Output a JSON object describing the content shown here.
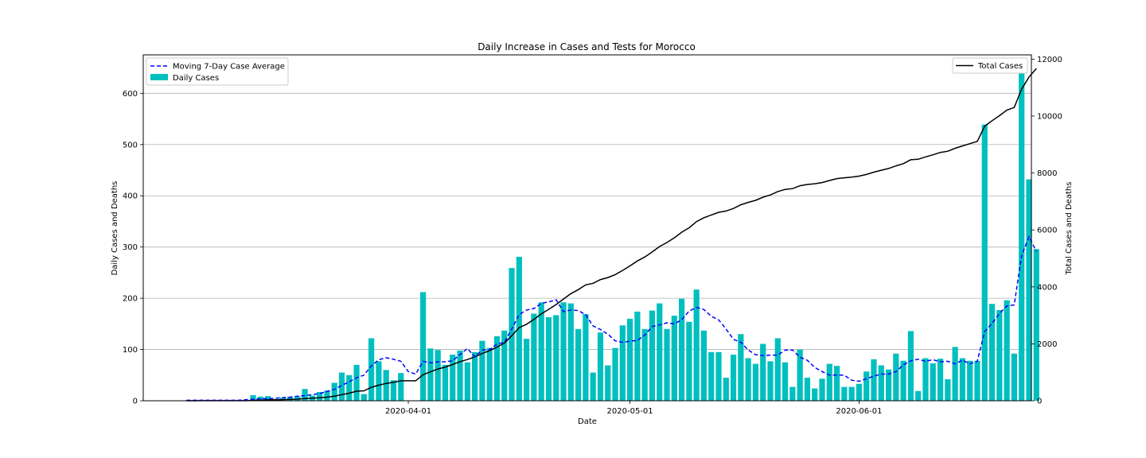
{
  "chart_data": {
    "type": "bar",
    "title": "Daily Increase in Cases and Tests for Morocco",
    "xlabel": "Date",
    "ylabel_left": "Daily Cases and Deaths",
    "ylabel_right": "Total Cases and Deaths",
    "start_date": "2020-03-02",
    "x_ticks": [
      {
        "label": "2020-04-01",
        "index": 30
      },
      {
        "label": "2020-05-01",
        "index": 60
      },
      {
        "label": "2020-06-01",
        "index": 91
      }
    ],
    "ylim_left": [
      0,
      675
    ],
    "yticks_left": [
      0,
      100,
      200,
      300,
      400,
      500,
      600
    ],
    "ylim_right": [
      0,
      12150
    ],
    "yticks_right": [
      0,
      2000,
      4000,
      6000,
      8000,
      10000,
      12000
    ],
    "grid": "horizontal",
    "colors": {
      "bars": "#00bfbf",
      "average": "#0000ff",
      "total": "#000000",
      "grid": "#b0b0b0"
    },
    "legend_left": [
      {
        "label": "Moving 7-Day Case Average",
        "style": "dashed-line"
      },
      {
        "label": "Daily Cases",
        "style": "bar"
      }
    ],
    "legend_right": [
      {
        "label": "Total Cases",
        "style": "solid-line"
      }
    ],
    "series": [
      {
        "name": "Daily Cases",
        "kind": "bar",
        "axis": "left",
        "values": [
          1,
          0,
          1,
          0,
          0,
          0,
          0,
          0,
          0,
          11,
          8,
          9,
          3,
          6,
          8,
          9,
          23,
          10,
          17,
          20,
          35,
          55,
          50,
          70,
          13,
          122,
          77,
          60,
          40,
          54,
          0,
          0,
          212,
          102,
          99,
          70,
          90,
          98,
          75,
          95,
          117,
          103,
          126,
          137,
          259,
          281,
          121,
          170,
          192,
          163,
          167,
          192,
          190,
          140,
          169,
          55,
          133,
          69,
          103,
          147,
          160,
          174,
          140,
          176,
          190,
          140,
          166,
          199,
          154,
          217,
          137,
          95,
          95,
          45,
          90,
          130,
          83,
          72,
          111,
          77,
          122,
          75,
          27,
          100,
          45,
          24,
          43,
          72,
          68,
          27,
          27,
          33,
          57,
          81,
          69,
          61,
          92,
          78,
          136,
          19,
          83,
          73,
          82,
          42,
          105,
          83,
          78,
          78,
          539,
          189,
          177,
          196,
          92,
          641,
          432,
          296
        ]
      },
      {
        "name": "Moving 7-Day Case Average",
        "kind": "line",
        "axis": "left",
        "values": [
          1,
          1,
          1,
          1,
          1,
          1,
          1,
          1,
          2,
          3,
          4,
          4,
          5,
          6,
          7,
          9,
          10,
          12,
          14,
          18,
          22,
          30,
          37,
          45,
          50,
          68,
          80,
          84,
          81,
          77,
          57,
          52,
          77,
          74,
          76,
          76,
          78,
          90,
          102,
          86,
          99,
          100,
          111,
          114,
          140,
          168,
          177,
          180,
          190,
          193,
          197,
          174,
          177,
          176,
          168,
          146,
          139,
          130,
          117,
          114,
          116,
          118,
          128,
          145,
          148,
          152,
          150,
          158,
          175,
          182,
          178,
          165,
          158,
          140,
          120,
          114,
          99,
          90,
          88,
          89,
          89,
          99,
          99,
          85,
          79,
          65,
          57,
          50,
          50,
          50,
          40,
          38,
          43,
          48,
          52,
          52,
          57,
          70,
          78,
          81,
          77,
          80,
          76,
          77,
          72,
          79,
          72,
          77,
          135,
          151,
          170,
          185,
          187,
          283,
          320,
          291
        ]
      },
      {
        "name": "Total Cases",
        "kind": "line",
        "axis": "right",
        "values": [
          1,
          1,
          2,
          2,
          2,
          2,
          2,
          2,
          2,
          13,
          21,
          30,
          33,
          39,
          47,
          56,
          79,
          89,
          106,
          126,
          161,
          216,
          266,
          336,
          349,
          471,
          548,
          608,
          648,
          702,
          702,
          702,
          914,
          1016,
          1115,
          1185,
          1275,
          1373,
          1448,
          1543,
          1660,
          1763,
          1889,
          2026,
          2285,
          2566,
          2687,
          2857,
          3049,
          3212,
          3379,
          3571,
          3761,
          3901,
          4070,
          4125,
          4258,
          4327,
          4430,
          4577,
          4737,
          4911,
          5051,
          5227,
          5417,
          5557,
          5723,
          5922,
          6076,
          6293,
          6430,
          6525,
          6620,
          6665,
          6755,
          6885,
          6968,
          7040,
          7151,
          7228,
          7350,
          7425,
          7452,
          7552,
          7597,
          7621,
          7664,
          7736,
          7804,
          7831,
          7858,
          7891,
          7948,
          8029,
          8098,
          8159,
          8251,
          8329,
          8465,
          8484,
          8567,
          8640,
          8722,
          8764,
          8869,
          8952,
          9030,
          9108,
          9647,
          9836,
          10013,
          10209,
          10301,
          10942,
          11374,
          11670
        ]
      }
    ]
  }
}
